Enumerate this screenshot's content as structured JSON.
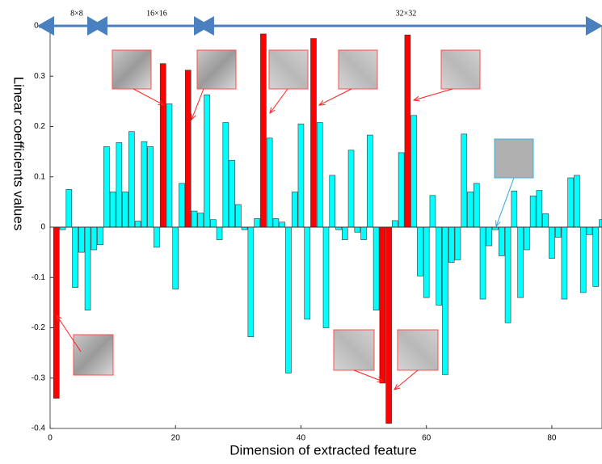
{
  "chart_data": {
    "type": "bar",
    "xlabel": "Dimension of extracted feature",
    "ylabel": "Linear  coefficients values",
    "x": [
      1,
      2,
      3,
      4,
      5,
      6,
      7,
      8,
      9,
      10,
      11,
      12,
      13,
      14,
      15,
      16,
      17,
      18,
      19,
      20,
      21,
      22,
      23,
      24,
      25,
      26,
      27,
      28,
      29,
      30,
      31,
      32,
      33,
      34,
      35,
      36,
      37,
      38,
      39,
      40,
      41,
      42,
      43,
      44,
      45,
      46,
      47,
      48,
      49,
      50,
      51,
      52,
      53,
      54,
      55,
      56,
      57,
      58,
      59,
      60,
      61,
      62,
      63,
      64,
      65,
      66,
      67,
      68,
      69,
      70,
      71,
      72,
      73,
      74,
      75,
      76,
      77,
      78,
      79,
      80,
      81,
      82,
      83,
      84,
      85,
      86,
      87,
      88
    ],
    "values": [
      -0.34,
      -0.005,
      0.075,
      -0.12,
      -0.05,
      -0.165,
      -0.045,
      -0.035,
      0.16,
      0.07,
      0.168,
      0.07,
      0.19,
      0.012,
      0.17,
      0.16,
      -0.04,
      0.325,
      0.245,
      -0.123,
      0.087,
      0.312,
      0.032,
      0.028,
      0.263,
      0.015,
      -0.025,
      0.208,
      0.133,
      0.045,
      -0.005,
      -0.218,
      0.017,
      0.384,
      0.177,
      0.017,
      0.01,
      -0.29,
      0.07,
      0.205,
      -0.183,
      0.375,
      0.208,
      -0.2,
      0.103,
      -0.005,
      -0.025,
      0.153,
      -0.01,
      -0.025,
      0.183,
      -0.165,
      -0.31,
      -0.39,
      0.013,
      0.148,
      0.382,
      0.222,
      -0.097,
      -0.14,
      0.063,
      -0.155,
      -0.293,
      -0.07,
      -0.065,
      0.185,
      0.07,
      0.087,
      -0.143,
      -0.037,
      -0.005,
      -0.057,
      -0.19,
      0.072,
      -0.14,
      -0.045,
      0.062,
      0.073,
      0.027,
      -0.062,
      -0.02,
      -0.143,
      0.098,
      0.103,
      -0.13,
      -0.015,
      -0.118,
      0.015
    ],
    "colors": [
      "#ff0000",
      "#00ffff",
      "#00ffff",
      "#00ffff",
      "#00ffff",
      "#00ffff",
      "#00ffff",
      "#00ffff",
      "#00ffff",
      "#00ffff",
      "#00ffff",
      "#00ffff",
      "#00ffff",
      "#00ffff",
      "#00ffff",
      "#00ffff",
      "#00ffff",
      "#ff0000",
      "#00ffff",
      "#00ffff",
      "#00ffff",
      "#ff0000",
      "#00ffff",
      "#00ffff",
      "#00ffff",
      "#00ffff",
      "#00ffff",
      "#00ffff",
      "#00ffff",
      "#00ffff",
      "#00ffff",
      "#00ffff",
      "#00ffff",
      "#ff0000",
      "#00ffff",
      "#00ffff",
      "#00ffff",
      "#00ffff",
      "#00ffff",
      "#00ffff",
      "#00ffff",
      "#ff0000",
      "#00ffff",
      "#00ffff",
      "#00ffff",
      "#00ffff",
      "#00ffff",
      "#00ffff",
      "#00ffff",
      "#00ffff",
      "#00ffff",
      "#00ffff",
      "#ff0000",
      "#ff0000",
      "#00ffff",
      "#00ffff",
      "#ff0000",
      "#00ffff",
      "#00ffff",
      "#00ffff",
      "#00ffff",
      "#00ffff",
      "#00ffff",
      "#00ffff",
      "#00ffff",
      "#00ffff",
      "#00ffff",
      "#00ffff",
      "#00ffff",
      "#00ffff",
      "#00ffff",
      "#00ffff",
      "#00ffff",
      "#00ffff",
      "#00ffff",
      "#00ffff",
      "#00ffff",
      "#00ffff",
      "#00ffff",
      "#00ffff",
      "#00ffff",
      "#00ffff",
      "#00ffff",
      "#00ffff",
      "#00ffff",
      "#00ffff",
      "#00ffff",
      "#00ffff"
    ],
    "xlim": [
      0,
      88
    ],
    "ylim": [
      -0.4,
      0.4
    ],
    "xticks": [
      0,
      20,
      40,
      60,
      80
    ],
    "yticks": [
      0.4,
      0.3,
      0.2,
      0.1,
      0,
      -0.1,
      -0.2,
      -0.3,
      -0.4
    ],
    "annotations": [
      {
        "text": "8×8",
        "x": [
          0,
          8.5
        ]
      },
      {
        "text": "16×16",
        "x": [
          8.5,
          25.5
        ]
      },
      {
        "text": "32×32",
        "x": [
          25.5,
          88
        ]
      }
    ]
  }
}
